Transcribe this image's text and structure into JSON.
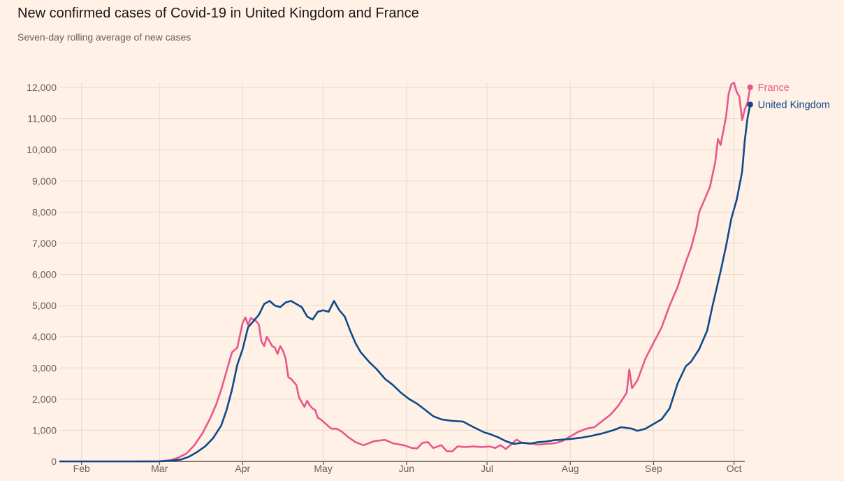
{
  "title": "New confirmed cases of Covid-19 in United Kingdom and France",
  "subtitle": "Seven-day rolling average of new cases",
  "chart_data": {
    "type": "line",
    "title": "New confirmed cases of Covid-19 in United Kingdom and France",
    "subtitle": "Seven-day rolling average of new cases",
    "xlabel": "",
    "ylabel": "",
    "ylim": [
      0,
      12000
    ],
    "yticks": [
      0,
      1000,
      2000,
      3000,
      4000,
      5000,
      6000,
      7000,
      8000,
      9000,
      10000,
      11000,
      12000
    ],
    "ytick_labels": [
      "0",
      "1,000",
      "2,000",
      "3,000",
      "4,000",
      "5,000",
      "6,000",
      "7,000",
      "8,000",
      "9,000",
      "10,000",
      "11,000",
      "12,000"
    ],
    "xlim": [
      "2020-01-24",
      "2020-10-05"
    ],
    "xticks": [
      "2020-02-01",
      "2020-03-01",
      "2020-04-01",
      "2020-05-01",
      "2020-06-01",
      "2020-07-01",
      "2020-08-01",
      "2020-09-01",
      "2020-10-01"
    ],
    "xtick_labels": [
      "Feb",
      "Mar",
      "Apr",
      "May",
      "Jun",
      "Jul",
      "Aug",
      "Sep",
      "Oct"
    ],
    "grid": true,
    "legend": "end-of-line labels",
    "series": [
      {
        "name": "France",
        "color": "#E8578C",
        "points": [
          [
            "2020-01-24",
            0
          ],
          [
            "2020-02-20",
            0
          ],
          [
            "2020-03-01",
            5
          ],
          [
            "2020-03-05",
            40
          ],
          [
            "2020-03-08",
            120
          ],
          [
            "2020-03-11",
            250
          ],
          [
            "2020-03-14",
            520
          ],
          [
            "2020-03-17",
            900
          ],
          [
            "2020-03-20",
            1400
          ],
          [
            "2020-03-22",
            1800
          ],
          [
            "2020-03-24",
            2300
          ],
          [
            "2020-03-26",
            2900
          ],
          [
            "2020-03-28",
            3500
          ],
          [
            "2020-03-30",
            3650
          ],
          [
            "2020-04-01",
            4450
          ],
          [
            "2020-04-02",
            4620
          ],
          [
            "2020-04-03",
            4380
          ],
          [
            "2020-04-04",
            4600
          ],
          [
            "2020-04-05",
            4550
          ],
          [
            "2020-04-06",
            4500
          ],
          [
            "2020-04-07",
            4400
          ],
          [
            "2020-04-08",
            3850
          ],
          [
            "2020-04-09",
            3700
          ],
          [
            "2020-04-10",
            4000
          ],
          [
            "2020-04-11",
            3850
          ],
          [
            "2020-04-12",
            3700
          ],
          [
            "2020-04-13",
            3650
          ],
          [
            "2020-04-14",
            3450
          ],
          [
            "2020-04-15",
            3700
          ],
          [
            "2020-04-16",
            3550
          ],
          [
            "2020-04-17",
            3300
          ],
          [
            "2020-04-18",
            2700
          ],
          [
            "2020-04-19",
            2650
          ],
          [
            "2020-04-20",
            2550
          ],
          [
            "2020-04-21",
            2450
          ],
          [
            "2020-04-22",
            2050
          ],
          [
            "2020-04-23",
            1900
          ],
          [
            "2020-04-24",
            1750
          ],
          [
            "2020-04-25",
            1950
          ],
          [
            "2020-04-26",
            1800
          ],
          [
            "2020-04-27",
            1700
          ],
          [
            "2020-04-28",
            1650
          ],
          [
            "2020-04-29",
            1400
          ],
          [
            "2020-04-30",
            1350
          ],
          [
            "2020-05-02",
            1200
          ],
          [
            "2020-05-04",
            1050
          ],
          [
            "2020-05-06",
            1050
          ],
          [
            "2020-05-08",
            950
          ],
          [
            "2020-05-10",
            800
          ],
          [
            "2020-05-13",
            620
          ],
          [
            "2020-05-16",
            520
          ],
          [
            "2020-05-20",
            650
          ],
          [
            "2020-05-24",
            690
          ],
          [
            "2020-05-27",
            580
          ],
          [
            "2020-05-31",
            520
          ],
          [
            "2020-06-03",
            430
          ],
          [
            "2020-06-05",
            420
          ],
          [
            "2020-06-07",
            600
          ],
          [
            "2020-06-09",
            620
          ],
          [
            "2020-06-11",
            430
          ],
          [
            "2020-06-14",
            520
          ],
          [
            "2020-06-16",
            330
          ],
          [
            "2020-06-18",
            320
          ],
          [
            "2020-06-20",
            480
          ],
          [
            "2020-06-23",
            460
          ],
          [
            "2020-06-26",
            480
          ],
          [
            "2020-06-29",
            460
          ],
          [
            "2020-07-02",
            480
          ],
          [
            "2020-07-04",
            430
          ],
          [
            "2020-07-06",
            520
          ],
          [
            "2020-07-08",
            400
          ],
          [
            "2020-07-10",
            550
          ],
          [
            "2020-07-12",
            700
          ],
          [
            "2020-07-14",
            600
          ],
          [
            "2020-07-17",
            580
          ],
          [
            "2020-07-20",
            540
          ],
          [
            "2020-07-23",
            560
          ],
          [
            "2020-07-26",
            580
          ],
          [
            "2020-07-29",
            650
          ],
          [
            "2020-08-01",
            800
          ],
          [
            "2020-08-04",
            950
          ],
          [
            "2020-08-07",
            1050
          ],
          [
            "2020-08-10",
            1100
          ],
          [
            "2020-08-13",
            1300
          ],
          [
            "2020-08-16",
            1500
          ],
          [
            "2020-08-19",
            1800
          ],
          [
            "2020-08-22",
            2200
          ],
          [
            "2020-08-23",
            2950
          ],
          [
            "2020-08-24",
            2350
          ],
          [
            "2020-08-26",
            2600
          ],
          [
            "2020-08-29",
            3300
          ],
          [
            "2020-09-01",
            3800
          ],
          [
            "2020-09-04",
            4300
          ],
          [
            "2020-09-07",
            5000
          ],
          [
            "2020-09-10",
            5600
          ],
          [
            "2020-09-13",
            6400
          ],
          [
            "2020-09-15",
            6850
          ],
          [
            "2020-09-17",
            7500
          ],
          [
            "2020-09-18",
            8000
          ],
          [
            "2020-09-20",
            8400
          ],
          [
            "2020-09-22",
            8800
          ],
          [
            "2020-09-24",
            9600
          ],
          [
            "2020-09-25",
            10350
          ],
          [
            "2020-09-26",
            10150
          ],
          [
            "2020-09-28",
            11050
          ],
          [
            "2020-09-29",
            11800
          ],
          [
            "2020-09-30",
            12100
          ],
          [
            "2020-10-01",
            12150
          ],
          [
            "2020-10-02",
            11850
          ],
          [
            "2020-10-03",
            11700
          ],
          [
            "2020-10-04",
            10950
          ],
          [
            "2020-10-05",
            11300
          ],
          [
            "2020-10-06",
            11500
          ],
          [
            "2020-10-07",
            12000
          ]
        ]
      },
      {
        "name": "United Kingdom",
        "color": "#0D4A8C",
        "points": [
          [
            "2020-01-24",
            0
          ],
          [
            "2020-03-01",
            0
          ],
          [
            "2020-03-05",
            20
          ],
          [
            "2020-03-09",
            60
          ],
          [
            "2020-03-12",
            150
          ],
          [
            "2020-03-15",
            300
          ],
          [
            "2020-03-18",
            480
          ],
          [
            "2020-03-21",
            750
          ],
          [
            "2020-03-24",
            1150
          ],
          [
            "2020-03-26",
            1650
          ],
          [
            "2020-03-28",
            2300
          ],
          [
            "2020-03-30",
            3100
          ],
          [
            "2020-04-01",
            3600
          ],
          [
            "2020-04-03",
            4300
          ],
          [
            "2020-04-05",
            4500
          ],
          [
            "2020-04-07",
            4700
          ],
          [
            "2020-04-09",
            5050
          ],
          [
            "2020-04-11",
            5150
          ],
          [
            "2020-04-13",
            5000
          ],
          [
            "2020-04-15",
            4950
          ],
          [
            "2020-04-17",
            5100
          ],
          [
            "2020-04-19",
            5150
          ],
          [
            "2020-04-21",
            5050
          ],
          [
            "2020-04-23",
            4950
          ],
          [
            "2020-04-25",
            4650
          ],
          [
            "2020-04-27",
            4550
          ],
          [
            "2020-04-29",
            4800
          ],
          [
            "2020-05-01",
            4850
          ],
          [
            "2020-05-03",
            4800
          ],
          [
            "2020-05-05",
            5150
          ],
          [
            "2020-05-07",
            4850
          ],
          [
            "2020-05-09",
            4650
          ],
          [
            "2020-05-11",
            4200
          ],
          [
            "2020-05-13",
            3800
          ],
          [
            "2020-05-15",
            3500
          ],
          [
            "2020-05-18",
            3200
          ],
          [
            "2020-05-21",
            2950
          ],
          [
            "2020-05-24",
            2650
          ],
          [
            "2020-05-27",
            2450
          ],
          [
            "2020-05-30",
            2200
          ],
          [
            "2020-06-02",
            2000
          ],
          [
            "2020-06-05",
            1850
          ],
          [
            "2020-06-08",
            1650
          ],
          [
            "2020-06-11",
            1450
          ],
          [
            "2020-06-14",
            1350
          ],
          [
            "2020-06-18",
            1300
          ],
          [
            "2020-06-22",
            1280
          ],
          [
            "2020-06-26",
            1100
          ],
          [
            "2020-06-30",
            930
          ],
          [
            "2020-07-02",
            880
          ],
          [
            "2020-07-05",
            780
          ],
          [
            "2020-07-08",
            650
          ],
          [
            "2020-07-11",
            560
          ],
          [
            "2020-07-14",
            600
          ],
          [
            "2020-07-17",
            570
          ],
          [
            "2020-07-20",
            620
          ],
          [
            "2020-07-23",
            640
          ],
          [
            "2020-07-26",
            680
          ],
          [
            "2020-07-29",
            700
          ],
          [
            "2020-08-01",
            720
          ],
          [
            "2020-08-05",
            760
          ],
          [
            "2020-08-09",
            820
          ],
          [
            "2020-08-13",
            900
          ],
          [
            "2020-08-17",
            1000
          ],
          [
            "2020-08-20",
            1100
          ],
          [
            "2020-08-24",
            1050
          ],
          [
            "2020-08-26",
            980
          ],
          [
            "2020-08-29",
            1050
          ],
          [
            "2020-09-01",
            1200
          ],
          [
            "2020-09-04",
            1350
          ],
          [
            "2020-09-07",
            1700
          ],
          [
            "2020-09-10",
            2500
          ],
          [
            "2020-09-13",
            3050
          ],
          [
            "2020-09-15",
            3200
          ],
          [
            "2020-09-18",
            3600
          ],
          [
            "2020-09-21",
            4200
          ],
          [
            "2020-09-23",
            5000
          ],
          [
            "2020-09-26",
            6100
          ],
          [
            "2020-09-28",
            6900
          ],
          [
            "2020-09-30",
            7800
          ],
          [
            "2020-10-02",
            8400
          ],
          [
            "2020-10-04",
            9300
          ],
          [
            "2020-10-05",
            10300
          ],
          [
            "2020-10-06",
            11000
          ],
          [
            "2020-10-07",
            11450
          ]
        ]
      }
    ]
  }
}
